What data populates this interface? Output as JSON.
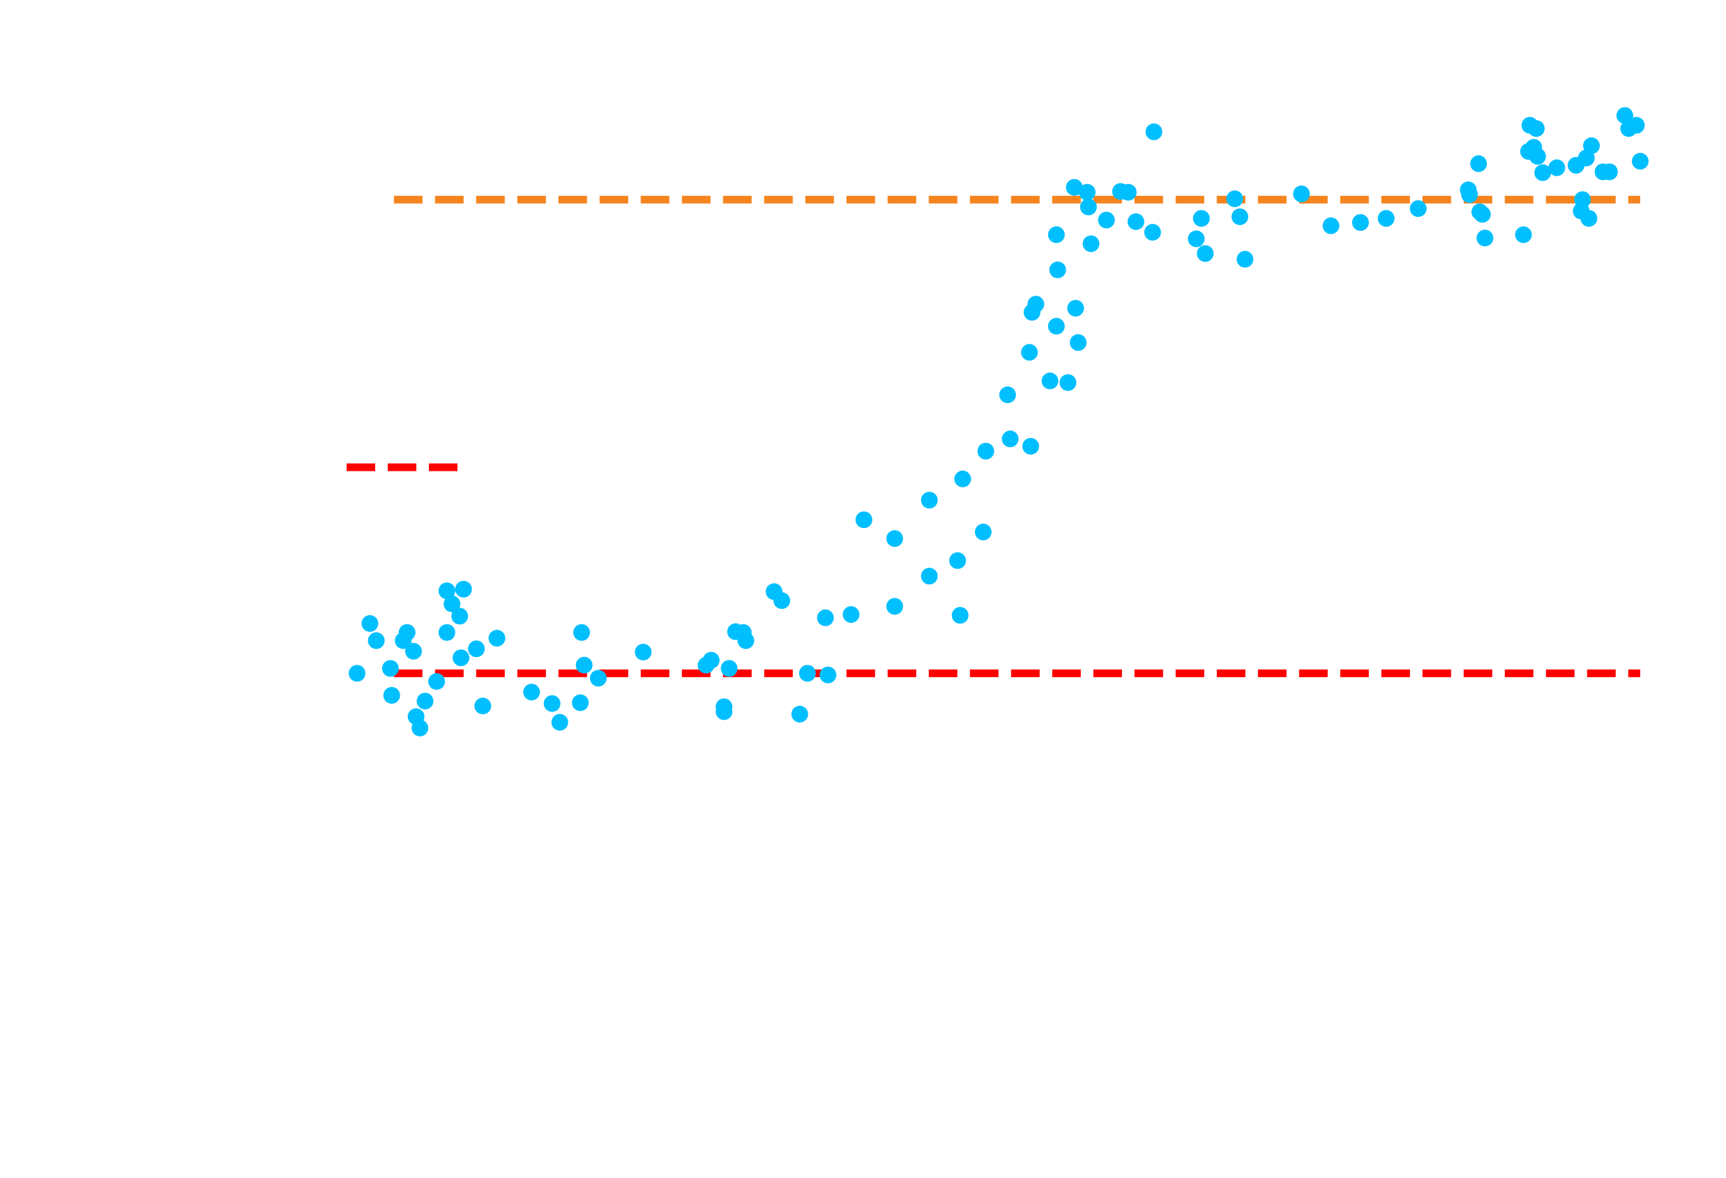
{
  "chart_data": {
    "type": "scatter",
    "title": "",
    "xlabel": "",
    "ylabel": "",
    "xlim": [
      0,
      1
    ],
    "ylim": [
      0,
      1
    ],
    "grid": false,
    "colors": {
      "points": "#00bfff",
      "upper_line": "#f5841f",
      "lower_line": "#ff0000"
    },
    "reference_lines": [
      {
        "name": "",
        "y": 0.876,
        "x_start": 0.0287,
        "x_end": 1.0,
        "color": "#f5841f",
        "style": "dashed"
      },
      {
        "name": "",
        "y": 0.296,
        "x_start": 0.0287,
        "x_end": 1.0,
        "color": "#ff0000",
        "style": "dashed"
      }
    ],
    "legend_entries": [
      {
        "label": "",
        "color": "#ff0000",
        "style": "dashed"
      }
    ],
    "series": [
      {
        "name": "",
        "x": [
          0.0,
          0.01,
          0.015,
          0.026,
          0.027,
          0.036,
          0.039,
          0.044,
          0.046,
          0.049,
          0.053,
          0.062,
          0.07,
          0.07,
          0.074,
          0.08,
          0.081,
          0.083,
          0.093,
          0.098,
          0.109,
          0.136,
          0.152,
          0.158,
          0.174,
          0.175,
          0.177,
          0.188,
          0.223,
          0.272,
          0.276,
          0.286,
          0.286,
          0.29,
          0.295,
          0.301,
          0.303,
          0.325,
          0.331,
          0.345,
          0.351,
          0.365,
          0.367,
          0.385,
          0.395,
          0.419,
          0.419,
          0.446,
          0.446,
          0.468,
          0.47,
          0.472,
          0.488,
          0.49,
          0.507,
          0.509,
          0.525,
          0.524,
          0.526,
          0.529,
          0.54,
          0.545,
          0.545,
          0.546,
          0.554,
          0.559,
          0.56,
          0.562,
          0.569,
          0.57,
          0.572,
          0.584,
          0.595,
          0.601,
          0.607,
          0.62,
          0.684,
          0.658,
          0.654,
          0.661,
          0.688,
          0.692,
          0.736,
          0.759,
          0.782,
          0.802,
          0.827,
          0.874,
          0.875,
          0.877,
          0.879,
          0.866,
          0.909,
          0.913,
          0.914,
          0.92,
          0.924,
          0.935,
          0.95,
          0.954,
          0.955,
          0.958,
          0.96,
          0.962,
          0.971,
          0.976,
          0.988,
          0.991,
          0.997,
          1.0,
          0.917,
          0.919,
          0.867,
          0.621
        ],
        "y": [
          0.296,
          0.357,
          0.336,
          0.302,
          0.269,
          0.336,
          0.346,
          0.323,
          0.243,
          0.229,
          0.262,
          0.286,
          0.397,
          0.346,
          0.381,
          0.366,
          0.315,
          0.399,
          0.326,
          0.256,
          0.339,
          0.273,
          0.259,
          0.236,
          0.26,
          0.346,
          0.306,
          0.29,
          0.322,
          0.306,
          0.312,
          0.249,
          0.255,
          0.302,
          0.347,
          0.346,
          0.336,
          0.396,
          0.385,
          0.246,
          0.296,
          0.364,
          0.294,
          0.368,
          0.484,
          0.378,
          0.461,
          0.415,
          0.508,
          0.434,
          0.367,
          0.534,
          0.469,
          0.568,
          0.637,
          0.583,
          0.574,
          0.689,
          0.738,
          0.748,
          0.654,
          0.721,
          0.833,
          0.79,
          0.652,
          0.891,
          0.743,
          0.701,
          0.885,
          0.867,
          0.822,
          0.851,
          0.886,
          0.885,
          0.849,
          0.836,
          0.877,
          0.853,
          0.828,
          0.81,
          0.855,
          0.803,
          0.883,
          0.844,
          0.848,
          0.853,
          0.865,
          0.92,
          0.861,
          0.858,
          0.829,
          0.888,
          0.833,
          0.935,
          0.967,
          0.929,
          0.909,
          0.915,
          0.918,
          0.862,
          0.876,
          0.927,
          0.853,
          0.942,
          0.91,
          0.91,
          0.979,
          0.963,
          0.967,
          0.923,
          0.94,
          0.963,
          0.882,
          0.959
        ]
      }
    ]
  }
}
